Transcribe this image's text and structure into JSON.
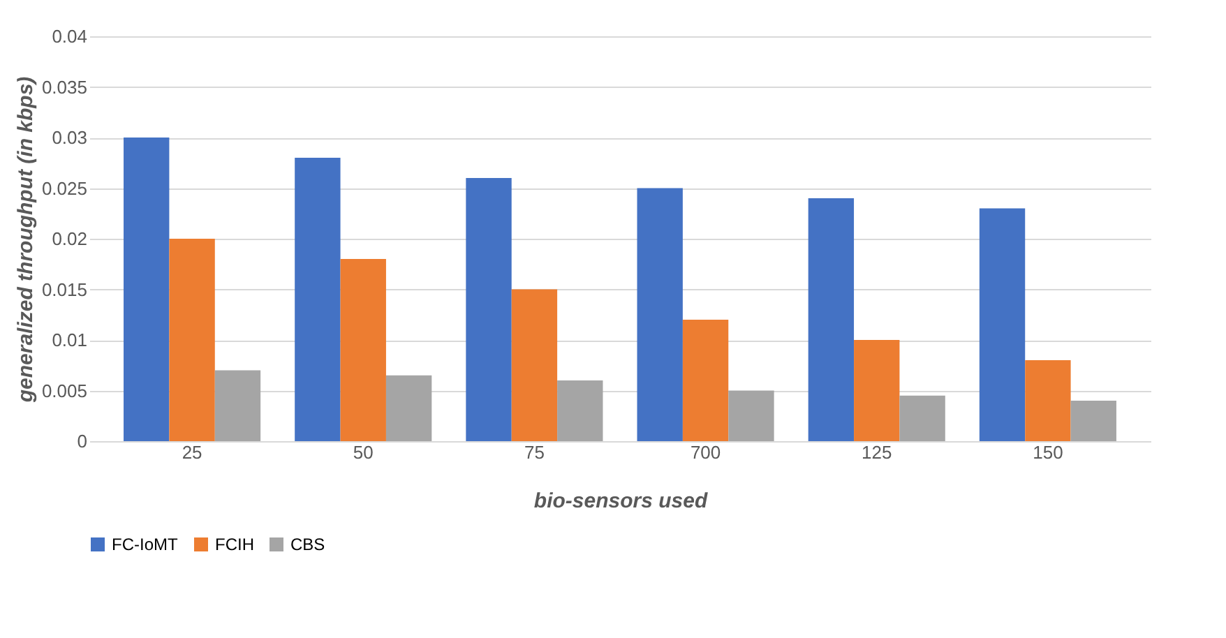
{
  "chart_data": {
    "type": "bar",
    "xlabel": "bio-sensors used",
    "ylabel": "generalized throughput (in kbps)",
    "categories": [
      "25",
      "50",
      "75",
      "700",
      "125",
      "150"
    ],
    "series": [
      {
        "name": "FC-IoMT",
        "color": "#4472c4",
        "values": [
          0.03,
          0.028,
          0.026,
          0.025,
          0.024,
          0.023
        ]
      },
      {
        "name": "FCIH",
        "color": "#ed7d31",
        "values": [
          0.02,
          0.018,
          0.015,
          0.012,
          0.01,
          0.008
        ]
      },
      {
        "name": "CBS",
        "color": "#a5a5a5",
        "values": [
          0.007,
          0.0065,
          0.006,
          0.005,
          0.0045,
          0.004
        ]
      }
    ],
    "ylim": [
      0,
      0.04
    ],
    "yticks": [
      0,
      0.005,
      0.01,
      0.015,
      0.02,
      0.025,
      0.03,
      0.035,
      0.04
    ],
    "grid": "y",
    "legend": "bottom"
  }
}
